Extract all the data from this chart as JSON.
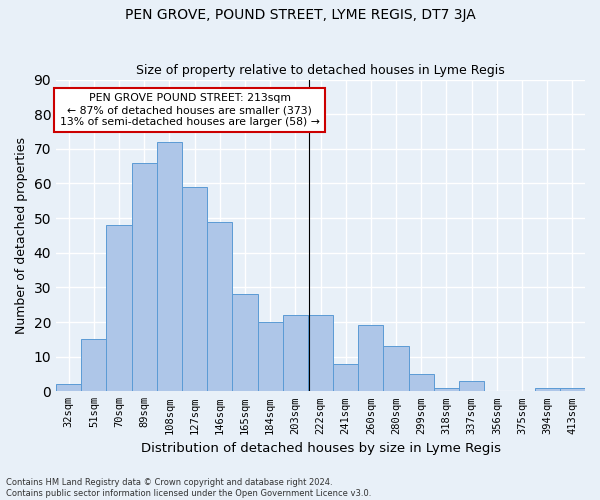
{
  "title": "PEN GROVE, POUND STREET, LYME REGIS, DT7 3JA",
  "subtitle": "Size of property relative to detached houses in Lyme Regis",
  "xlabel": "Distribution of detached houses by size in Lyme Regis",
  "ylabel": "Number of detached properties",
  "categories": [
    "32sqm",
    "51sqm",
    "70sqm",
    "89sqm",
    "108sqm",
    "127sqm",
    "146sqm",
    "165sqm",
    "184sqm",
    "203sqm",
    "222sqm",
    "241sqm",
    "260sqm",
    "280sqm",
    "299sqm",
    "318sqm",
    "337sqm",
    "356sqm",
    "375sqm",
    "394sqm",
    "413sqm"
  ],
  "values": [
    2,
    15,
    48,
    66,
    72,
    59,
    49,
    28,
    20,
    22,
    22,
    8,
    19,
    13,
    5,
    1,
    3,
    0,
    0,
    1,
    1
  ],
  "bar_color": "#aec6e8",
  "bar_edge_color": "#5b9bd5",
  "background_color": "#e8f0f8",
  "grid_color": "#ffffff",
  "annotation_text_line1": "PEN GROVE POUND STREET: 213sqm",
  "annotation_text_line2": "← 87% of detached houses are smaller (373)",
  "annotation_text_line3": "13% of semi-detached houses are larger (58) →",
  "annotation_box_color": "#ffffff",
  "annotation_border_color": "#cc0000",
  "ylim": [
    0,
    90
  ],
  "yticks": [
    0,
    10,
    20,
    30,
    40,
    50,
    60,
    70,
    80,
    90
  ],
  "footnote_line1": "Contains HM Land Registry data © Crown copyright and database right 2024.",
  "footnote_line2": "Contains public sector information licensed under the Open Government Licence v3.0."
}
